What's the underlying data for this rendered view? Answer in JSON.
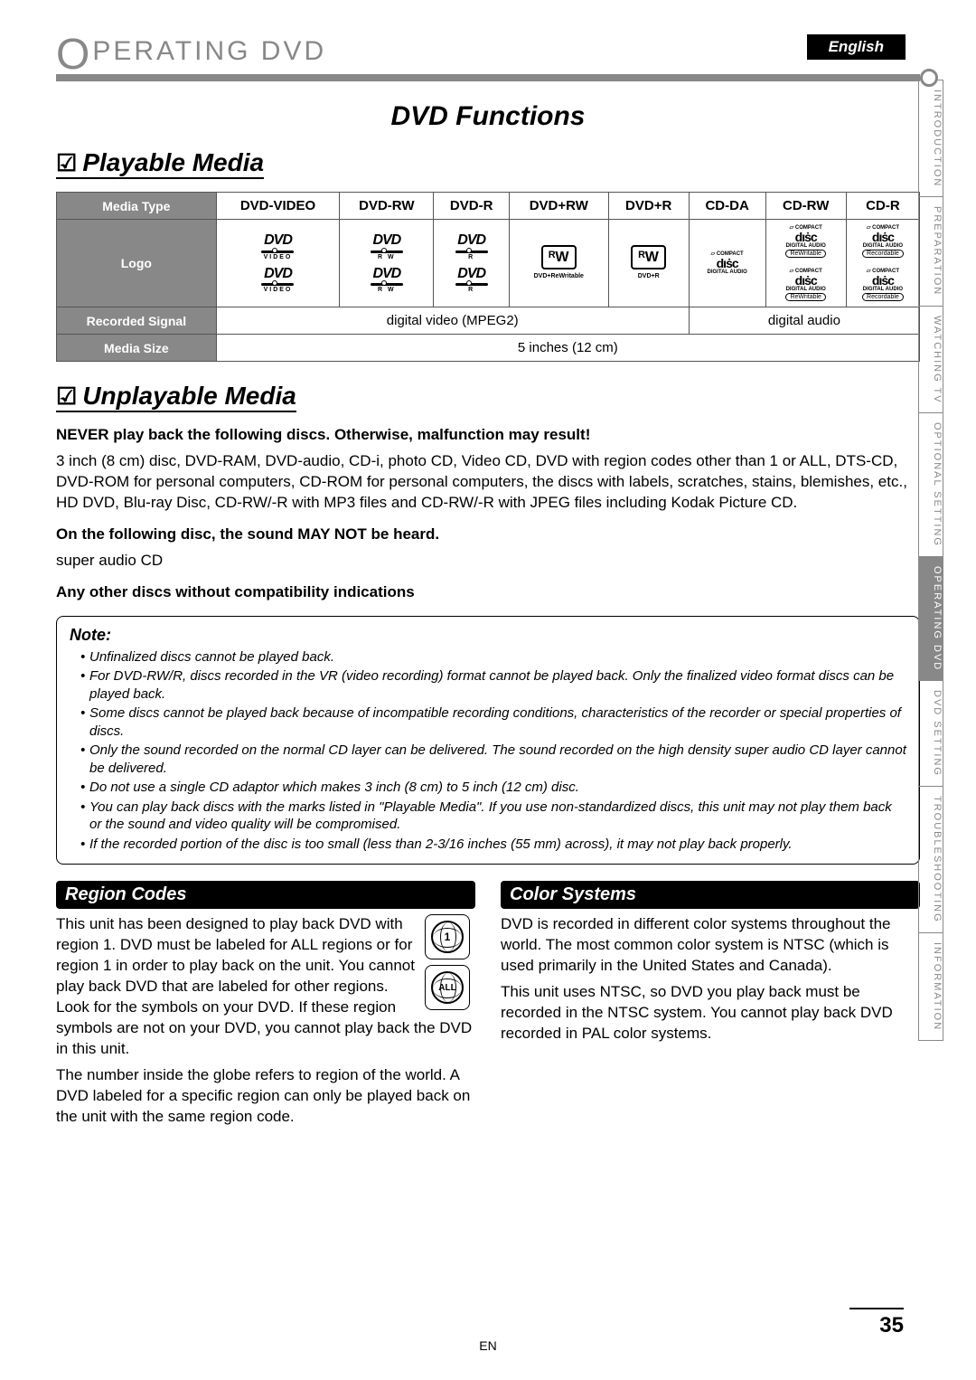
{
  "language_tab": "English",
  "side_tabs": [
    {
      "label": "INTRODUCTION",
      "active": false
    },
    {
      "label": "PREPARATION",
      "active": false
    },
    {
      "label": "WATCHING TV",
      "active": false
    },
    {
      "label": "OPTIONAL SETTING",
      "active": false
    },
    {
      "label": "OPERATING DVD",
      "active": true
    },
    {
      "label": "DVD SETTING",
      "active": false
    },
    {
      "label": "TROUBLESHOOTING",
      "active": false
    },
    {
      "label": "INFORMATION",
      "active": false
    }
  ],
  "chapter": {
    "prefix": "O",
    "rest": "PERATING  DVD"
  },
  "section_title": "DVD Functions",
  "playable_heading": "Playable Media",
  "table": {
    "headers": {
      "media_type": "Media Type",
      "logo": "Logo",
      "recorded": "Recorded Signal",
      "size": "Media Size"
    },
    "cols": [
      "DVD-VIDEO",
      "DVD-RW",
      "DVD-R",
      "DVD+RW",
      "DVD+R",
      "CD-DA",
      "CD-RW",
      "CD-R"
    ],
    "logos": [
      {
        "type": "dvd",
        "sub": "VIDEO"
      },
      {
        "type": "dvd",
        "sub": "R W"
      },
      {
        "type": "dvd",
        "sub": "R"
      },
      {
        "type": "rw",
        "sub": "DVD+ReWritable"
      },
      {
        "type": "rw",
        "sub": "DVD+R"
      },
      {
        "type": "disc",
        "top": "COMPACT",
        "main": "disc",
        "sub": "DIGITAL AUDIO"
      },
      {
        "type": "disc2",
        "top": "COMPACT",
        "main": "disc",
        "sub": "DIGITAL AUDIO",
        "box": "ReWritable"
      },
      {
        "type": "disc2",
        "top": "COMPACT",
        "main": "disc",
        "sub": "DIGITAL AUDIO",
        "box": "Recordable"
      }
    ],
    "recorded": {
      "video": "digital video (MPEG2)",
      "audio": "digital audio"
    },
    "size": "5 inches (12 cm)"
  },
  "unplayable_heading": "Unplayable Media",
  "unplayable": {
    "never_bold": "NEVER play back the following discs. Otherwise, malfunction may result!",
    "never_body": "3 inch (8 cm) disc, DVD-RAM, DVD-audio, CD-i, photo CD, Video CD, DVD with region codes other than 1 or ALL, DTS-CD, DVD-ROM for personal computers, CD-ROM for personal computers, the discs with labels, scratches, stains, blemishes, etc., HD DVD, Blu-ray Disc, CD-RW/-R with MP3 files and CD-RW/-R with JPEG files including Kodak Picture CD.",
    "sound_bold": "On the following disc, the sound MAY NOT be heard.",
    "sound_body": "super audio CD",
    "any_bold": "Any other discs without compatibility indications"
  },
  "note": {
    "heading": "Note:",
    "items": [
      "Unfinalized discs cannot be played back.",
      "For DVD-RW/R, discs recorded in the VR (video recording) format cannot be played back. Only the finalized video format discs can be played back.",
      "Some discs cannot be played back because of incompatible recording conditions, characteristics of the recorder or special properties of discs.",
      "Only the sound recorded on the normal CD layer can be delivered. The sound recorded on the high density super audio CD layer cannot be delivered.",
      "Do not use a single CD adaptor which makes 3 inch (8 cm) to 5 inch (12 cm) disc.",
      "You can play back discs with the marks listed in \"Playable Media\". If you use non-standardized discs, this unit may not play them back or the sound and video quality will be compromised.",
      "If the recorded portion of the disc is too small (less than 2-3/16 inches (55 mm) across), it may not play back properly."
    ]
  },
  "region": {
    "heading": "Region Codes",
    "p1": "This unit has been designed to play back DVD with region 1. DVD must be labeled for ALL regions or for region 1 in order to play back on the unit. You cannot play back DVD that are labeled for other regions. Look for the symbols on your DVD. If these region symbols are not on your DVD, you cannot play back the DVD in this unit.",
    "p2": "The number inside the globe refers to region of the world. A DVD labeled for a specific region can only be played back on the unit with the same region code.",
    "icon1": "1",
    "icon2": "ALL"
  },
  "color": {
    "heading": "Color Systems",
    "p1": "DVD is recorded in different color systems throughout the world. The most common color system is NTSC (which is used primarily in the United States and Canada).",
    "p2": "This unit uses NTSC, so DVD you play back must be recorded in the NTSC system. You cannot play back DVD recorded in PAL color systems."
  },
  "page_number": "35",
  "en": "EN"
}
